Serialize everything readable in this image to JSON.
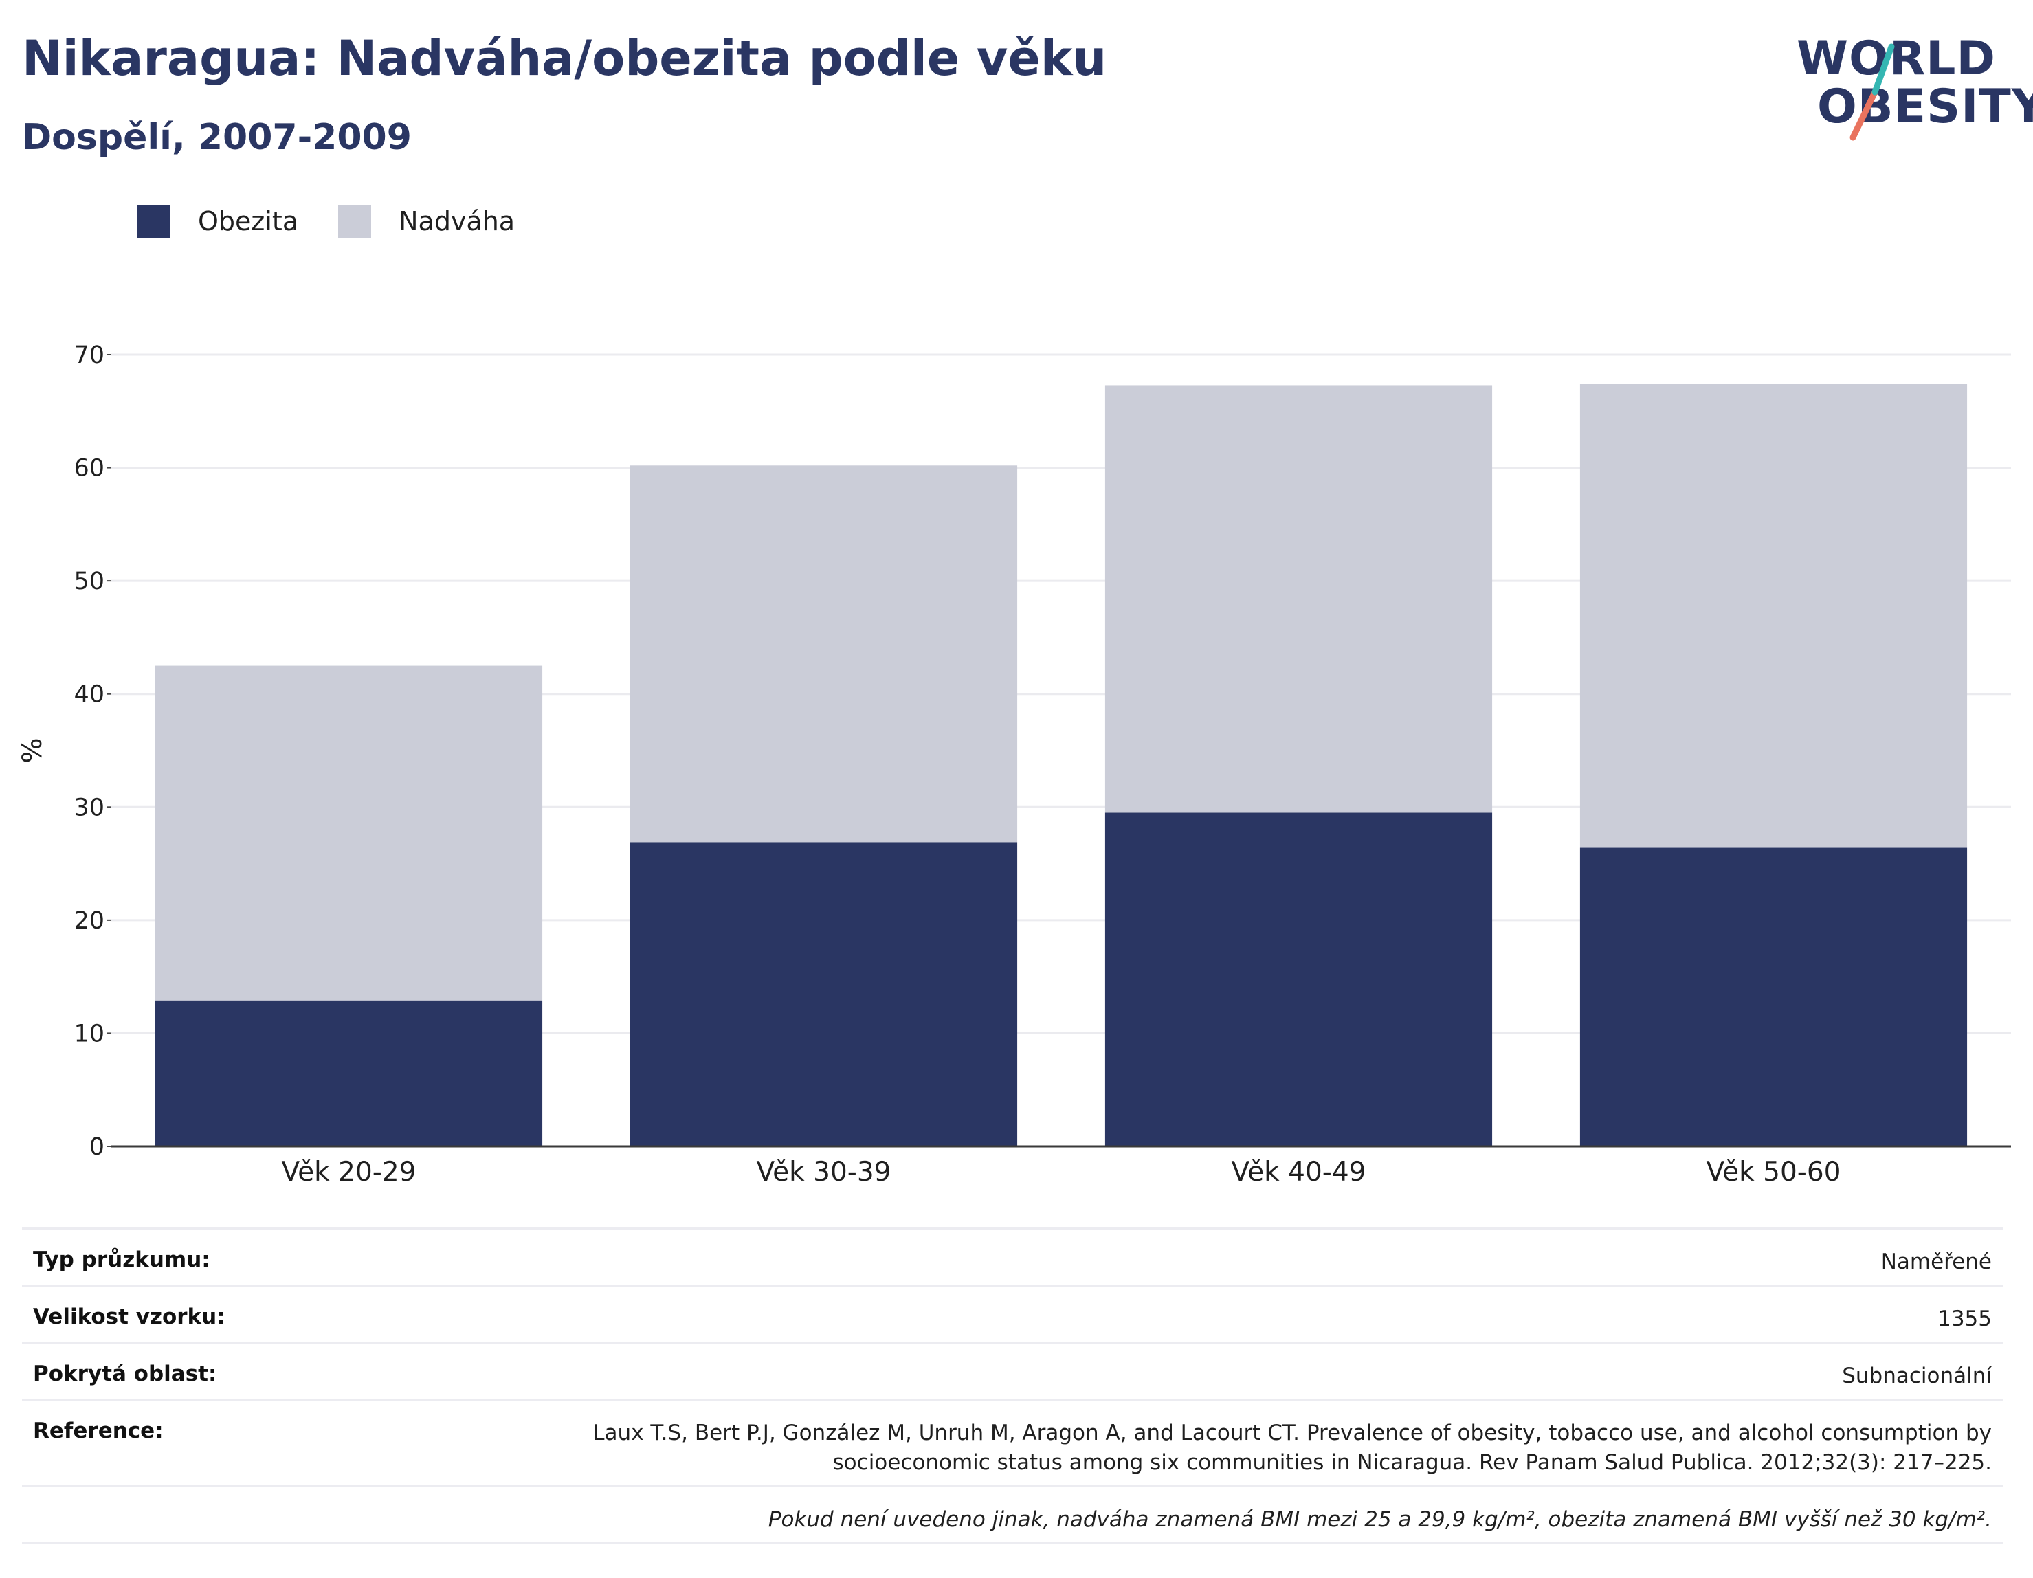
{
  "title": "Nikaragua: Nadváha/obezita podle věku",
  "subtitle": "Dospělí, 2007-2009",
  "logo": {
    "line1": "WORLD",
    "line2": "OBESITY",
    "color_teal": "#34b6b2",
    "color_coral": "#e9735e"
  },
  "legend": [
    {
      "label": "Obezita",
      "color": "#2a3663"
    },
    {
      "label": "Nadváha",
      "color": "#cbcdd8"
    }
  ],
  "chart_data": {
    "type": "bar",
    "stacked": true,
    "categories": [
      "Věk 20-29",
      "Věk 30-39",
      "Věk 40-49",
      "Věk 50-60"
    ],
    "series": [
      {
        "name": "Obezita",
        "color": "#2a3663",
        "values": [
          12.9,
          26.9,
          29.5,
          26.4
        ]
      },
      {
        "name": "Nadváha",
        "color": "#cbcdd8",
        "values": [
          29.6,
          33.3,
          37.8,
          41.0
        ]
      }
    ],
    "ylabel": "%",
    "ylim": [
      0,
      70
    ],
    "yticks": [
      0,
      10,
      20,
      30,
      40,
      50,
      60,
      70
    ],
    "grid": true
  },
  "info": {
    "survey_type": {
      "label": "Typ průzkumu:",
      "value": "Naměřené"
    },
    "sample_size": {
      "label": "Velikost vzorku:",
      "value": "1355"
    },
    "coverage": {
      "label": "Pokrytá oblast:",
      "value": "Subnacionální"
    },
    "reference": {
      "label": "Reference:",
      "line1": "Laux T.S, Bert P.J, González M, Unruh M, Aragon A, and Lacourt CT. Prevalence of obesity, tobacco use, and alcohol consumption by",
      "line2": "socioeconomic status among six communities in Nicaragua. Rev Panam Salud Publica. 2012;32(3): 217–225."
    },
    "note": "Pokud není uvedeno jinak, nadváha znamená BMI mezi 25 a 29,9 kg/m², obezita znamená BMI vyšší než 30 kg/m²."
  }
}
